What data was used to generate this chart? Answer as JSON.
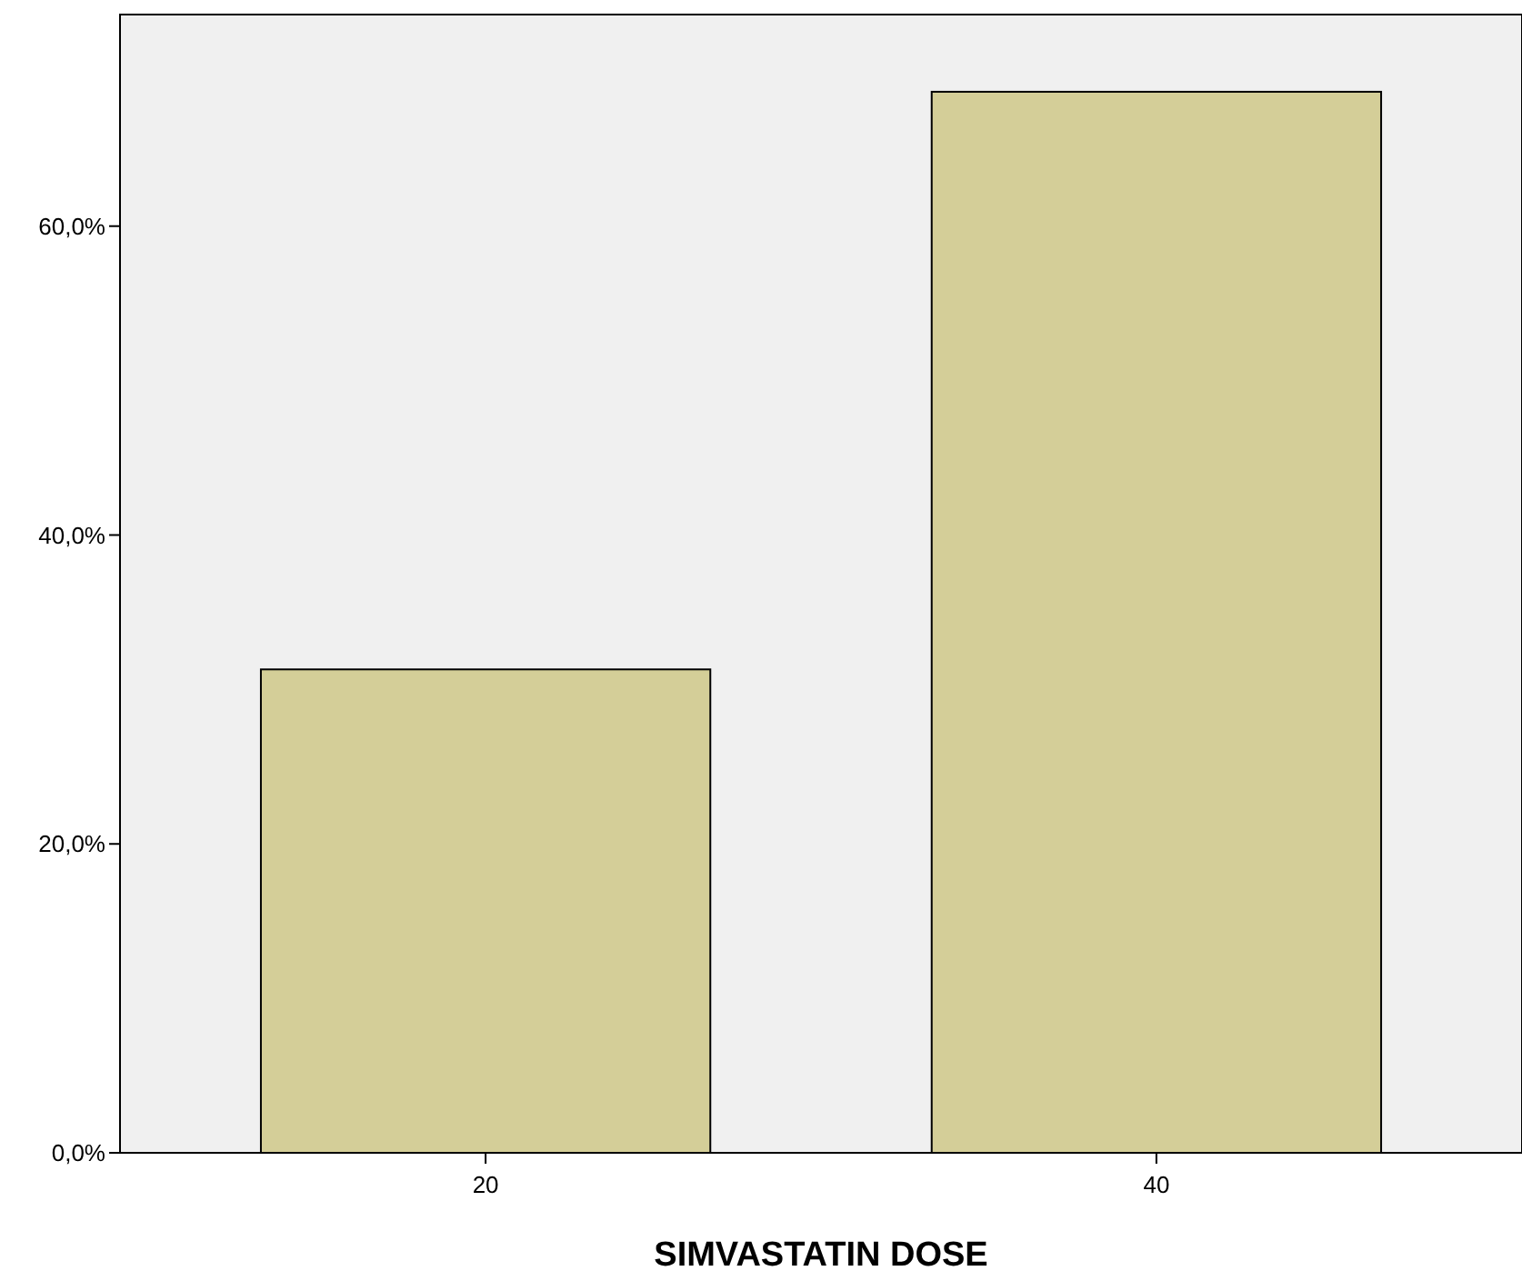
{
  "chart_data": {
    "type": "bar",
    "xlabel": "SIMVASTATIN DOSE",
    "categories": [
      "20",
      "40"
    ],
    "values": [
      31.3,
      68.7
    ],
    "color": "#d4ce98",
    "ylim": [
      0,
      73.7
    ],
    "yticks": [
      {
        "value": 0,
        "label": "0,0%"
      },
      {
        "value": 20,
        "label": "20,0%"
      },
      {
        "value": 40,
        "label": "40,0%"
      },
      {
        "value": 60,
        "label": "60,0%"
      }
    ],
    "grid": false
  }
}
